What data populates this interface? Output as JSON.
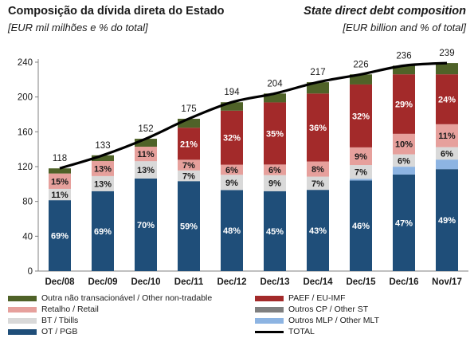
{
  "header": {
    "title_pt": "Composição da dívida direta do Estado",
    "subtitle_pt": "[EUR mil milhões e % do total]",
    "title_en": "State direct debt composition",
    "subtitle_en": "[EUR billion and % of total]"
  },
  "chart_data": {
    "type": "bar",
    "stacked": true,
    "categories": [
      "Dec/08",
      "Dec/09",
      "Dec/10",
      "Dec/11",
      "Dec/12",
      "Dec/13",
      "Dec/14",
      "Dec/15",
      "Dec/16",
      "Nov/17"
    ],
    "ylim": [
      0,
      240
    ],
    "yticks": [
      0,
      40,
      80,
      120,
      160,
      200,
      240
    ],
    "grid": false,
    "legend_position": "bottom",
    "series": [
      {
        "name": "OT / PGB",
        "color": "#1f4e79",
        "values": [
          81.4,
          91.8,
          106.4,
          103.3,
          93.1,
          91.8,
          93.3,
          104.0,
          110.9,
          117.1
        ],
        "labels": [
          "69%",
          "69%",
          "70%",
          "59%",
          "48%",
          "45%",
          "43%",
          "46%",
          "47%",
          "49%"
        ]
      },
      {
        "name": "Outros MLP / Other MLT",
        "color": "#8db4e2",
        "values": [
          0,
          0,
          0,
          0,
          0,
          0,
          0,
          2.0,
          9.0,
          11.0
        ],
        "labels": [
          "",
          "",
          "",
          "",
          "",
          "",
          "",
          "",
          "",
          ""
        ]
      },
      {
        "name": "BT / Tbills",
        "color": "#d9d9d9",
        "values": [
          13.0,
          17.3,
          19.8,
          12.3,
          17.5,
          18.4,
          15.2,
          15.8,
          14.2,
          14.3
        ],
        "labels": [
          "11%",
          "13%",
          "13%",
          "7%",
          "9%",
          "9%",
          "7%",
          "7%",
          "6%",
          "6%"
        ]
      },
      {
        "name": "Retalho / Retail",
        "color": "#e6a09c",
        "values": [
          17.7,
          17.3,
          16.7,
          12.3,
          11.6,
          12.2,
          17.4,
          20.3,
          23.6,
          26.3
        ],
        "labels": [
          "15%",
          "13%",
          "11%",
          "7%",
          "6%",
          "6%",
          "8%",
          "9%",
          "10%",
          "11%"
        ]
      },
      {
        "name": "PAEF / EU-IMF",
        "color": "#a32a2a",
        "values": [
          0,
          0,
          0,
          36.8,
          62.1,
          71.4,
          78.1,
          72.3,
          68.4,
          57.4
        ],
        "labels": [
          "",
          "",
          "",
          "21%",
          "32%",
          "35%",
          "36%",
          "32%",
          "29%",
          "24%"
        ]
      },
      {
        "name": "Outros CP / Other ST",
        "color": "#7f7f7f",
        "values": [
          0,
          0,
          0,
          0,
          0,
          0,
          0,
          0,
          0,
          0
        ],
        "labels": [
          "",
          "",
          "",
          "",
          "",
          "",
          "",
          "",
          "",
          ""
        ]
      },
      {
        "name": "Outra não transacionável / Other non-tradable",
        "color": "#4f6228",
        "values": [
          5.9,
          6.6,
          9.1,
          10.3,
          9.7,
          10.2,
          13.0,
          11.6,
          9.9,
          12.9
        ],
        "labels": [
          "",
          "",
          "",
          "",
          "",
          "",
          "",
          "",
          "",
          ""
        ]
      }
    ],
    "total": {
      "name": "TOTAL",
      "color": "#000000",
      "values": [
        118,
        133,
        152,
        175,
        194,
        204,
        217,
        226,
        236,
        239
      ]
    }
  },
  "legend_layout": [
    [
      "Outra não transacionável / Other non-tradable",
      "PAEF / EU-IMF"
    ],
    [
      "Retalho / Retail",
      "Outros CP / Other ST"
    ],
    [
      "BT / Tbills",
      "Outros MLP / Other MLT"
    ],
    [
      "OT / PGB",
      "TOTAL"
    ]
  ]
}
